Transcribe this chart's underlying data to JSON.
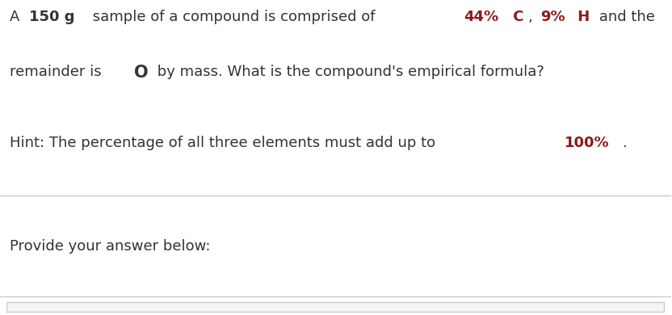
{
  "bg_color": "#ffffff",
  "text_color": "#333333",
  "highlight_color": "#8B1A1A",
  "line1_parts": [
    {
      "text": "A ",
      "bold": false,
      "larger": false,
      "color": "#333333"
    },
    {
      "text": "150 g",
      "bold": true,
      "larger": false,
      "color": "#333333"
    },
    {
      "text": " sample of a compound is comprised of ",
      "bold": false,
      "larger": false,
      "color": "#333333"
    },
    {
      "text": "44%",
      "bold": true,
      "larger": false,
      "color": "#8B1A1A"
    },
    {
      "text": " C",
      "bold": true,
      "larger": false,
      "color": "#8B1A1A"
    },
    {
      "text": ", ",
      "bold": false,
      "larger": false,
      "color": "#333333"
    },
    {
      "text": "9%",
      "bold": true,
      "larger": false,
      "color": "#8B1A1A"
    },
    {
      "text": " H",
      "bold": true,
      "larger": false,
      "color": "#8B1A1A"
    },
    {
      "text": " and the",
      "bold": false,
      "larger": false,
      "color": "#333333"
    }
  ],
  "line2_parts": [
    {
      "text": "remainder is ",
      "bold": false,
      "larger": false,
      "color": "#333333"
    },
    {
      "text": "O",
      "bold": true,
      "larger": true,
      "color": "#333333"
    },
    {
      "text": " by mass. What is the compound's empirical formula?",
      "bold": false,
      "larger": false,
      "color": "#333333"
    }
  ],
  "hint_parts": [
    {
      "text": "Hint: The percentage of all three elements must add up to ",
      "bold": false,
      "larger": false,
      "color": "#333333"
    },
    {
      "text": "100%",
      "bold": true,
      "larger": false,
      "color": "#8B1A1A"
    },
    {
      "text": ".",
      "bold": false,
      "larger": false,
      "color": "#333333"
    }
  ],
  "provide_text": "Provide your answer below:",
  "divider_color": "#cccccc",
  "box_color": "#f5f5f5",
  "box_border_color": "#cccccc",
  "font_size": 13,
  "font_size_extra": 2
}
